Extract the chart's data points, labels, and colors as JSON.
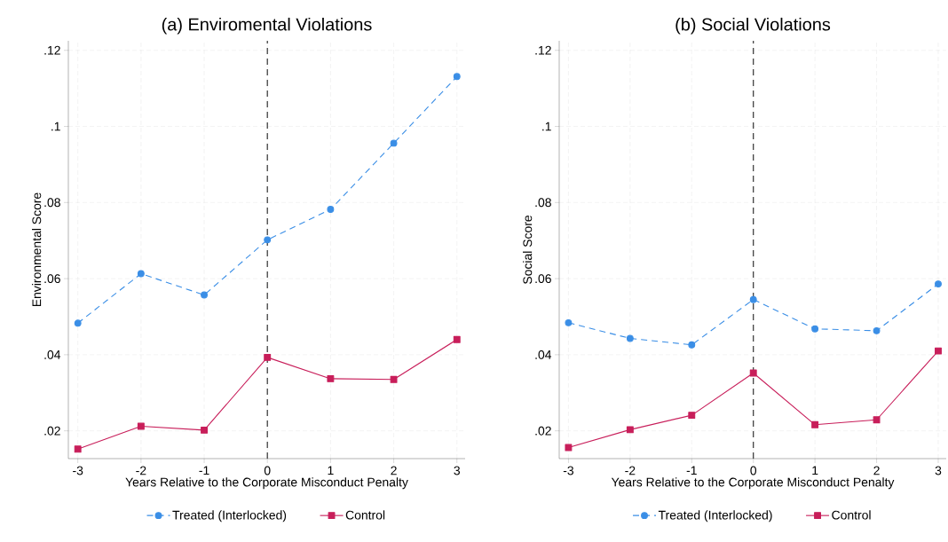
{
  "chart_data": [
    {
      "type": "line",
      "title": "(a) Enviromental Violations",
      "xlabel": "Years Relative to the Corporate Misconduct Penalty",
      "ylabel": "Environmental Score",
      "x": [
        -3,
        -2,
        -1,
        0,
        1,
        2,
        3
      ],
      "series": [
        {
          "name": "Treated (Interlocked)",
          "color": "#3a8ee6",
          "marker": "circle",
          "line_style": "dashed",
          "values": [
            0.0483,
            0.0613,
            0.0557,
            0.0702,
            0.0782,
            0.0956,
            0.1131
          ]
        },
        {
          "name": "Control",
          "color": "#c81e5a",
          "marker": "square",
          "line_style": "solid",
          "values": [
            0.0152,
            0.0212,
            0.0202,
            0.0393,
            0.0337,
            0.0335,
            0.044
          ]
        }
      ],
      "xlim": [
        -3.15,
        3.13
      ],
      "ylim": [
        0.0127,
        0.1225
      ],
      "xticks": [
        -3,
        -2,
        -1,
        0,
        1,
        2,
        3
      ],
      "yticks": [
        {
          "value": 0.02,
          "label": ".02"
        },
        {
          "value": 0.04,
          "label": ".04"
        },
        {
          "value": 0.06,
          "label": ".06"
        },
        {
          "value": 0.08,
          "label": ".08"
        },
        {
          "value": 0.1,
          "label": ".1"
        },
        {
          "value": 0.12,
          "label": ".12"
        }
      ],
      "ref_lines": [
        {
          "axis": "x",
          "value": 0,
          "color": "#333333",
          "line_style": "dashed"
        }
      ],
      "grid": true,
      "legend": "bottom"
    },
    {
      "type": "line",
      "title": "(b) Social Violations",
      "xlabel": "Years Relative to the Corporate Misconduct Penalty",
      "ylabel": "Social Score",
      "x": [
        -3,
        -2,
        -1,
        0,
        1,
        2,
        3
      ],
      "series": [
        {
          "name": "Treated (Interlocked)",
          "color": "#3a8ee6",
          "marker": "circle",
          "line_style": "dashed",
          "values": [
            0.0484,
            0.0443,
            0.0426,
            0.0545,
            0.0468,
            0.0463,
            0.0586
          ]
        },
        {
          "name": "Control",
          "color": "#c81e5a",
          "marker": "square",
          "line_style": "solid",
          "values": [
            0.0156,
            0.0203,
            0.0241,
            0.0352,
            0.0216,
            0.0229,
            0.041
          ]
        }
      ],
      "xlim": [
        -3.15,
        3.13
      ],
      "ylim": [
        0.0127,
        0.1225
      ],
      "xticks": [
        -3,
        -2,
        -1,
        0,
        1,
        2,
        3
      ],
      "yticks": [
        {
          "value": 0.02,
          "label": ".02"
        },
        {
          "value": 0.04,
          "label": ".04"
        },
        {
          "value": 0.06,
          "label": ".06"
        },
        {
          "value": 0.08,
          "label": ".08"
        },
        {
          "value": 0.1,
          "label": ".1"
        },
        {
          "value": 0.12,
          "label": ".12"
        }
      ],
      "ref_lines": [
        {
          "axis": "x",
          "value": 0,
          "color": "#333333",
          "line_style": "dashed"
        }
      ],
      "grid": true,
      "legend": "bottom"
    }
  ]
}
